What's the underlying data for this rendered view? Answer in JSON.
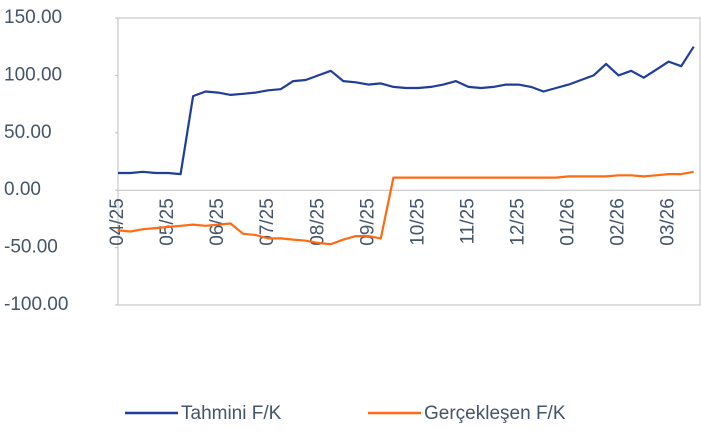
{
  "chart_data": {
    "type": "line",
    "categories": [
      "04/25",
      null,
      null,
      null,
      "05/25",
      null,
      null,
      null,
      "06/25",
      null,
      null,
      null,
      "07/25",
      null,
      null,
      null,
      "08/25",
      null,
      null,
      null,
      "09/25",
      null,
      null,
      null,
      "10/25",
      null,
      null,
      null,
      "11/25",
      null,
      null,
      null,
      "12/25",
      null,
      null,
      null,
      "01/26",
      null,
      null,
      null,
      "02/26",
      null,
      null,
      null,
      "03/26",
      null,
      null
    ],
    "series": [
      {
        "name": "Tahmini F/K",
        "color": "#1f3d99",
        "values": [
          15,
          15,
          16,
          15,
          15,
          14,
          82,
          86,
          85,
          83,
          84,
          85,
          87,
          88,
          95,
          96,
          100,
          104,
          95,
          94,
          92,
          93,
          90,
          89,
          89,
          90,
          92,
          95,
          90,
          89,
          90,
          92,
          92,
          90,
          86,
          89,
          92,
          96,
          100,
          110,
          100,
          104,
          98,
          105,
          112,
          108,
          125
        ]
      },
      {
        "name": "Gerçekleşen F/K",
        "color": "#ff6a13",
        "values": [
          -35,
          -36,
          -34,
          -33,
          -32,
          -31,
          -30,
          -31,
          -30,
          -29,
          -38,
          -39,
          -42,
          -42,
          -43,
          -44,
          -46,
          -47,
          -43,
          -40,
          -40,
          -42,
          11,
          11,
          11,
          11,
          11,
          11,
          11,
          11,
          11,
          11,
          11,
          11,
          11,
          11,
          12,
          12,
          12,
          12,
          13,
          13,
          12,
          13,
          14,
          14,
          16
        ]
      }
    ],
    "ylim": [
      -100,
      150
    ],
    "yticks": [
      {
        "value": -100,
        "label": "-100.00"
      },
      {
        "value": -50,
        "label": "-50.00"
      },
      {
        "value": 0,
        "label": "0.00"
      },
      {
        "value": 50,
        "label": "50.00"
      },
      {
        "value": 100,
        "label": "100.00"
      },
      {
        "value": 150,
        "label": "150.00"
      }
    ],
    "grid": false,
    "legend": "bottom"
  }
}
